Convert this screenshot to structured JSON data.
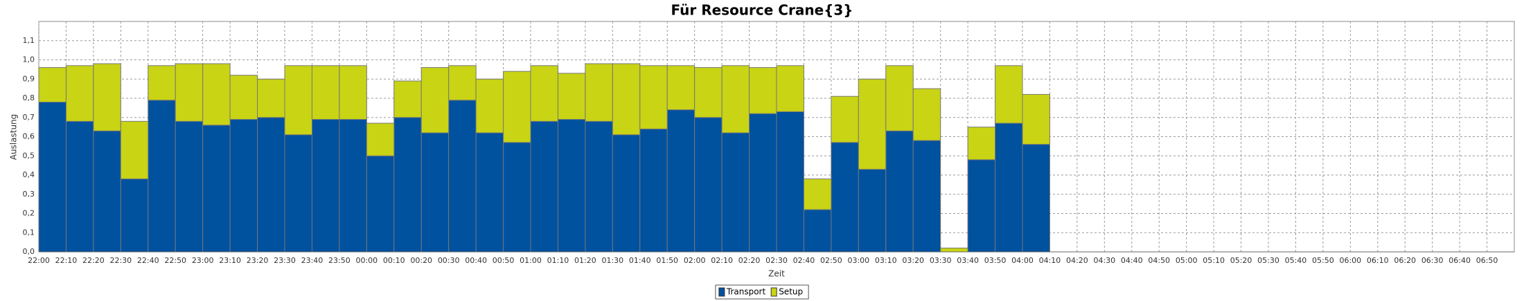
{
  "chart_data": {
    "type": "stacked_bar",
    "title": "Für Resource Crane{3}",
    "x_label": "Zeit",
    "y_label": "Auslastung",
    "categories": [
      "22:00",
      "22:10",
      "22:20",
      "22:30",
      "22:40",
      "22:50",
      "23:00",
      "23:10",
      "23:20",
      "23:30",
      "23:40",
      "23:50",
      "00:00",
      "00:10",
      "00:20",
      "00:30",
      "00:40",
      "00:50",
      "01:00",
      "01:10",
      "01:20",
      "01:30",
      "01:40",
      "01:50",
      "02:00",
      "02:10",
      "02:20",
      "02:30",
      "02:40",
      "02:50",
      "03:00",
      "03:10",
      "03:20",
      "03:30",
      "03:40",
      "03:50",
      "04:00",
      "04:10",
      "04:20",
      "04:30",
      "04:40",
      "04:50",
      "05:00",
      "05:10",
      "05:20",
      "05:30",
      "05:40",
      "05:50",
      "06:00",
      "06:10",
      "06:20",
      "06:30",
      "06:40",
      "06:50"
    ],
    "series": [
      {
        "name": "Transport",
        "color": "#00519e",
        "values": [
          0.78,
          0.68,
          0.63,
          0.38,
          0.79,
          0.68,
          0.66,
          0.69,
          0.7,
          0.61,
          0.69,
          0.69,
          0.5,
          0.7,
          0.62,
          0.79,
          0.62,
          0.57,
          0.68,
          0.69,
          0.68,
          0.61,
          0.64,
          0.74,
          0.7,
          0.62,
          0.72,
          0.73,
          0.22,
          0.57,
          0.43,
          0.63,
          0.58,
          0,
          0.48,
          0.67,
          0.56,
          null,
          null,
          null,
          null,
          null,
          null,
          null,
          null,
          null,
          null,
          null,
          null,
          null,
          null,
          null,
          null,
          null
        ]
      },
      {
        "name": "Setup",
        "color": "#c8d414",
        "values": [
          0.18,
          0.29,
          0.35,
          0.3,
          0.18,
          0.3,
          0.32,
          0.23,
          0.2,
          0.36,
          0.28,
          0.28,
          0.17,
          0.19,
          0.34,
          0.18,
          0.28,
          0.37,
          0.29,
          0.24,
          0.3,
          0.37,
          0.33,
          0.23,
          0.26,
          0.35,
          0.24,
          0.24,
          0.16,
          0.24,
          0.47,
          0.34,
          0.27,
          0.02,
          0.17,
          0.3,
          0.26,
          null,
          null,
          null,
          null,
          null,
          null,
          null,
          null,
          null,
          null,
          null,
          null,
          null,
          null,
          null,
          null,
          null
        ]
      }
    ],
    "ylim": [
      0,
      1.2
    ],
    "yticks": [
      {
        "value": 0,
        "label": "0,0"
      },
      {
        "value": 0.1,
        "label": "0,1"
      },
      {
        "value": 0.2,
        "label": "0,2"
      },
      {
        "value": 0.3,
        "label": "0,3"
      },
      {
        "value": 0.4,
        "label": "0,4"
      },
      {
        "value": 0.5,
        "label": "0,5"
      },
      {
        "value": 0.6,
        "label": "0,6"
      },
      {
        "value": 0.7,
        "label": "0,7"
      },
      {
        "value": 0.8,
        "label": "0,8"
      },
      {
        "value": 0.9,
        "label": "0,9"
      },
      {
        "value": 1.0,
        "label": "1,0"
      },
      {
        "value": 1.1,
        "label": "1,1"
      }
    ],
    "grid": true,
    "legend": "bottom"
  }
}
